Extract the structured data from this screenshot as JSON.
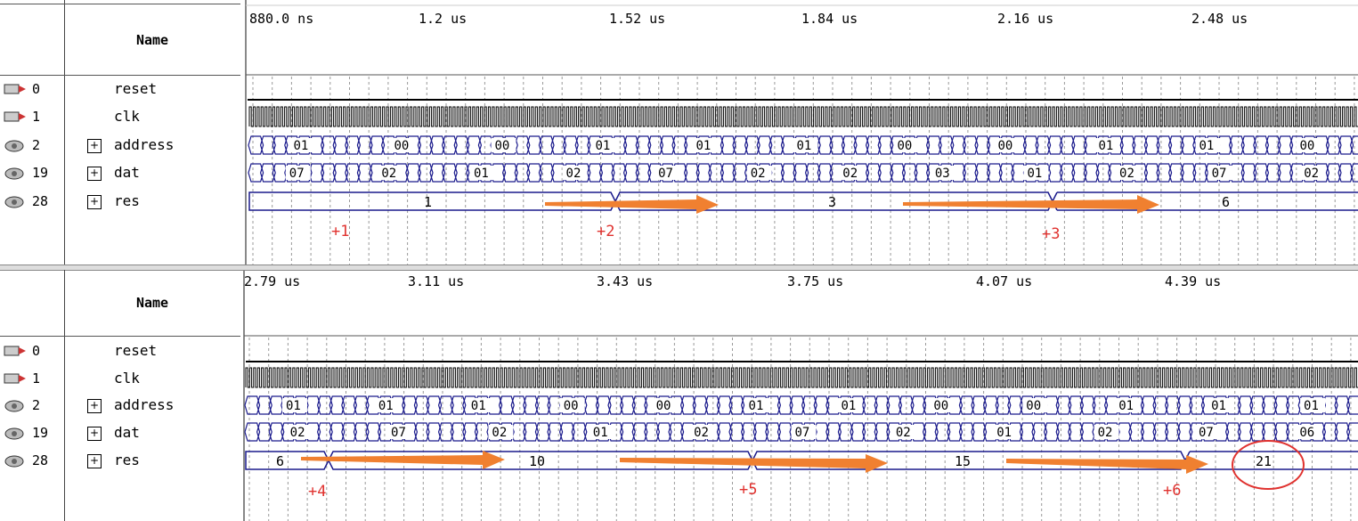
{
  "panels": [
    {
      "name_header": "Name",
      "time_labels": [
        "880.0 ns",
        "1.2 us",
        "1.52 us",
        "1.84 us",
        "2.16 us",
        "2.48 us"
      ],
      "signals": [
        {
          "id": "0",
          "name": "reset",
          "icon": "input-pin-icon"
        },
        {
          "id": "1",
          "name": "clk",
          "icon": "input-pin-icon"
        },
        {
          "id": "2",
          "name": "address",
          "icon": "bus-icon",
          "expand": "+"
        },
        {
          "id": "19",
          "name": "dat",
          "icon": "bus-icon",
          "expand": "+"
        },
        {
          "id": "28",
          "name": "res",
          "icon": "bus-icon",
          "expand": "+"
        }
      ],
      "address_values": [
        "01",
        "00",
        "00",
        "01",
        "01",
        "01",
        "00",
        "00",
        "01",
        "01",
        "00"
      ],
      "dat_values": [
        "07",
        "02",
        "01",
        "02",
        "07",
        "02",
        "02",
        "03",
        "01",
        "02",
        "07",
        "02"
      ],
      "res_values": [
        "1",
        "3",
        "6"
      ],
      "annotations": [
        "+1",
        "+2",
        "+3"
      ]
    },
    {
      "name_header": "Name",
      "time_labels": [
        "2.79 us",
        "3.11 us",
        "3.43 us",
        "3.75 us",
        "4.07 us",
        "4.39 us"
      ],
      "signals": [
        {
          "id": "0",
          "name": "reset",
          "icon": "input-pin-icon"
        },
        {
          "id": "1",
          "name": "clk",
          "icon": "input-pin-icon"
        },
        {
          "id": "2",
          "name": "address",
          "icon": "bus-icon",
          "expand": "+"
        },
        {
          "id": "19",
          "name": "dat",
          "icon": "bus-icon",
          "expand": "+"
        },
        {
          "id": "28",
          "name": "res",
          "icon": "bus-icon",
          "expand": "+"
        }
      ],
      "address_values": [
        "01",
        "01",
        "01",
        "00",
        "00",
        "01",
        "01",
        "00",
        "00",
        "01",
        "01",
        "01"
      ],
      "dat_values": [
        "02",
        "07",
        "02",
        "01",
        "02",
        "07",
        "02",
        "01",
        "02",
        "07",
        "06"
      ],
      "res_values": [
        "6",
        "10",
        "15",
        "21"
      ],
      "annotations": [
        "+4",
        "+5",
        "+6"
      ]
    }
  ],
  "colors": {
    "bus": "#1a1a8c",
    "arrow": "#f08030",
    "annotation": "#e0322f",
    "grid": "#9a9a9a"
  }
}
